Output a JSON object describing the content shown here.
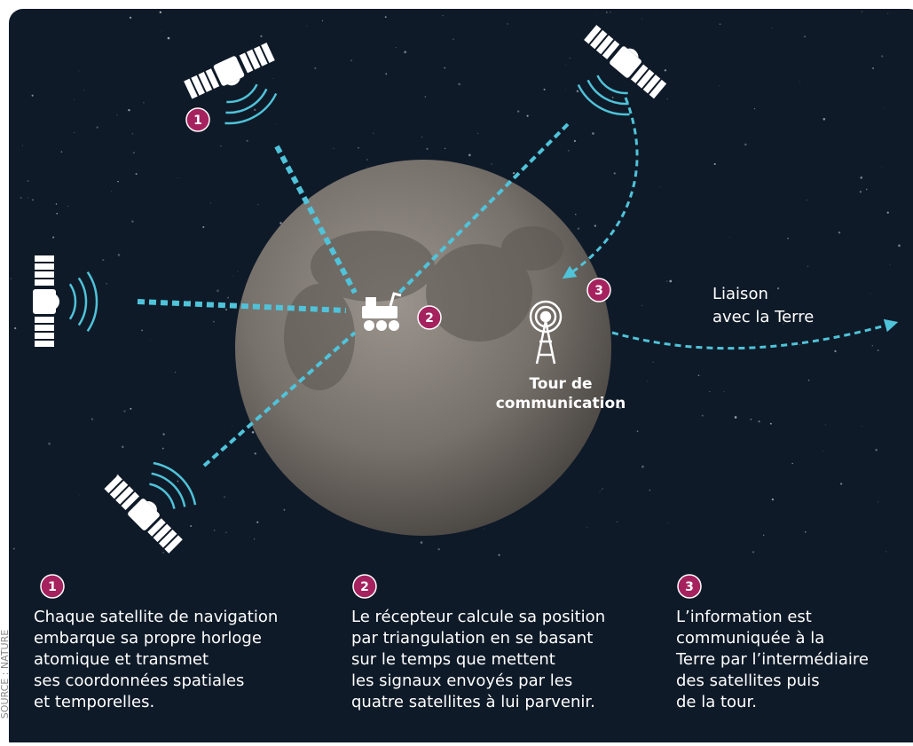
{
  "source": "SOURCE : NATURE",
  "markers": [
    "1",
    "2",
    "3"
  ],
  "labels": {
    "tower": [
      "Tour de",
      "communication"
    ],
    "earth_link": [
      "Liaison",
      "avec la Terre"
    ]
  },
  "steps": [
    {
      "number": "1",
      "lines": [
        "Chaque satellite de navigation",
        "embarque sa propre horloge",
        "atomique et transmet",
        "ses coordonnées spatiales",
        "et temporelles."
      ]
    },
    {
      "number": "2",
      "lines": [
        "Le récepteur calcule sa position",
        "par triangulation en se basant",
        "sur le temps que mettent",
        "les signaux envoyés par les",
        "quatre satellites à lui parvenir."
      ]
    },
    {
      "number": "3",
      "lines": [
        "L’information est",
        "communiquée à la",
        "Terre par l’intermédiaire",
        "des satellites puis",
        "de la tour."
      ]
    }
  ]
}
